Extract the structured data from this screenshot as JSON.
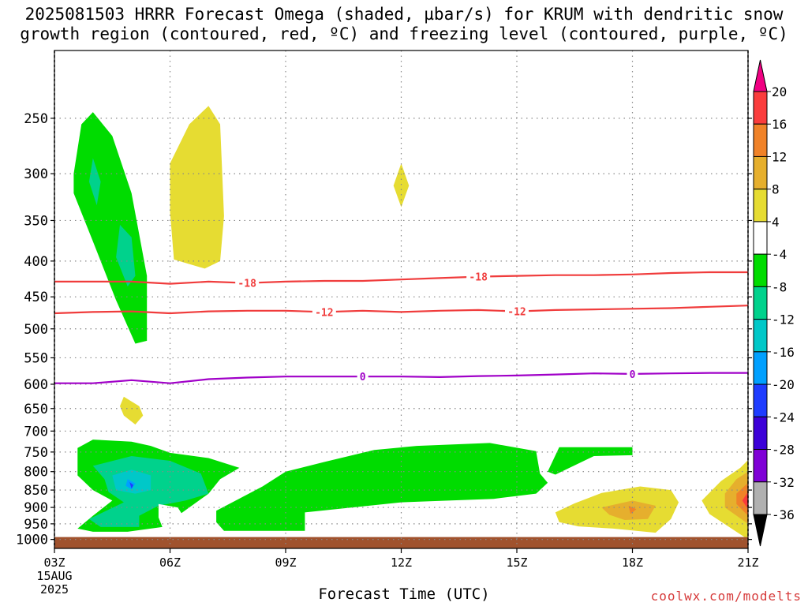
{
  "title": "2025081503 HRRR Forecast Omega (shaded, µbar/s) for KRUM with dendritic snow growth region (contoured, red, ºC) and freezing level (contoured, purple, ºC)",
  "credit": "coolwx.com/modelts",
  "colors": {
    "neg36": "#b0b0b0",
    "neg32": "#a000c8",
    "neg28": "#7f00d6",
    "neg24": "#3c00d8",
    "neg20": "#1e3cff",
    "neg16": "#00a0ff",
    "neg12": "#00c8c8",
    "neg8": "#00d28c",
    "neg4": "#00dc00",
    "zero": "#ffffff",
    "pos4": "#e6dc32",
    "pos8": "#e6af2d",
    "pos12": "#f08228",
    "pos16": "#fa3c3c",
    "pos20": "#f00082",
    "dgz_contour": "#f03c3c",
    "freezing_contour": "#a000c8",
    "ground": "#a0522d"
  },
  "chart_data": {
    "type": "contour",
    "xlabel": "Forecast Time (UTC)",
    "x_ticks": [
      "03Z",
      "06Z",
      "09Z",
      "12Z",
      "15Z",
      "18Z",
      "21Z"
    ],
    "x_start_date": [
      "15AUG",
      "2025"
    ],
    "x_range_hours": [
      3,
      21
    ],
    "y_ticks": [
      250,
      300,
      350,
      400,
      450,
      500,
      550,
      600,
      650,
      700,
      750,
      800,
      850,
      900,
      950,
      1000
    ],
    "y_range_hPa": [
      200,
      1030
    ],
    "y_log": true,
    "grid": true,
    "colorbar": {
      "labels": [
        20,
        16,
        12,
        8,
        4,
        -4,
        -8,
        -12,
        -16,
        -20,
        -24,
        -28,
        -32,
        -36
      ],
      "placement": "right"
    },
    "contours": [
      {
        "name": "-18",
        "color": "dgz_contour",
        "label_x": [
          8,
          14
        ],
        "points": [
          [
            3,
            428
          ],
          [
            5,
            428
          ],
          [
            6,
            431
          ],
          [
            7,
            428
          ],
          [
            8,
            430
          ],
          [
            9,
            428
          ],
          [
            10,
            427
          ],
          [
            11,
            427
          ],
          [
            12,
            425
          ],
          [
            13,
            423
          ],
          [
            14,
            421
          ],
          [
            15,
            420
          ],
          [
            16,
            419
          ],
          [
            17,
            419
          ],
          [
            18,
            418
          ],
          [
            19,
            416
          ],
          [
            20,
            415
          ],
          [
            21,
            415
          ]
        ]
      },
      {
        "name": "-12",
        "color": "dgz_contour",
        "label_x": [
          10,
          15
        ],
        "points": [
          [
            3,
            475
          ],
          [
            4,
            473
          ],
          [
            5,
            472
          ],
          [
            6,
            475
          ],
          [
            7,
            472
          ],
          [
            8,
            471
          ],
          [
            9,
            471
          ],
          [
            10,
            473
          ],
          [
            11,
            471
          ],
          [
            12,
            473
          ],
          [
            13,
            471
          ],
          [
            14,
            470
          ],
          [
            15,
            472
          ],
          [
            16,
            470
          ],
          [
            17,
            469
          ],
          [
            18,
            468
          ],
          [
            19,
            467
          ],
          [
            20,
            465
          ],
          [
            21,
            463
          ]
        ]
      },
      {
        "name": "0",
        "color": "freezing_contour",
        "label_x": [
          11,
          18
        ],
        "points": [
          [
            3,
            598
          ],
          [
            4,
            598
          ],
          [
            5,
            592
          ],
          [
            6,
            598
          ],
          [
            7,
            590
          ],
          [
            8,
            587
          ],
          [
            9,
            585
          ],
          [
            10,
            585
          ],
          [
            11,
            585
          ],
          [
            12,
            585
          ],
          [
            13,
            586
          ],
          [
            14,
            584
          ],
          [
            15,
            583
          ],
          [
            16,
            581
          ],
          [
            17,
            579
          ],
          [
            18,
            580
          ],
          [
            19,
            579
          ],
          [
            20,
            578
          ],
          [
            21,
            578
          ]
        ]
      }
    ],
    "shaded_regions": [
      {
        "level": "neg4",
        "points": [
          [
            4.0,
            245
          ],
          [
            4.5,
            265
          ],
          [
            5.0,
            320
          ],
          [
            5.4,
            420
          ],
          [
            5.4,
            520
          ],
          [
            5.1,
            525
          ],
          [
            4.6,
            455
          ],
          [
            4.0,
            375
          ],
          [
            3.5,
            320
          ],
          [
            3.5,
            300
          ],
          [
            3.7,
            255
          ]
        ]
      },
      {
        "level": "neg8",
        "points": [
          [
            4.0,
            285
          ],
          [
            4.2,
            308
          ],
          [
            4.1,
            333
          ],
          [
            3.9,
            308
          ]
        ]
      },
      {
        "level": "neg8",
        "points": [
          [
            4.7,
            355
          ],
          [
            5.0,
            370
          ],
          [
            5.1,
            420
          ],
          [
            4.9,
            435
          ],
          [
            4.6,
            395
          ]
        ]
      },
      {
        "level": "pos4",
        "points": [
          [
            6.5,
            255
          ],
          [
            7.0,
            240
          ],
          [
            7.3,
            255
          ],
          [
            7.4,
            345
          ],
          [
            7.3,
            400
          ],
          [
            6.9,
            410
          ],
          [
            6.1,
            398
          ],
          [
            6.0,
            340
          ],
          [
            6.0,
            290
          ]
        ]
      },
      {
        "level": "pos4",
        "points": [
          [
            12.0,
            290
          ],
          [
            12.2,
            312
          ],
          [
            12.0,
            335
          ],
          [
            11.8,
            312
          ]
        ]
      },
      {
        "level": "pos4",
        "points": [
          [
            4.8,
            625
          ],
          [
            5.2,
            645
          ],
          [
            5.3,
            665
          ],
          [
            5.1,
            685
          ],
          [
            4.8,
            665
          ],
          [
            4.7,
            645
          ]
        ]
      },
      {
        "level": "neg4",
        "points": [
          [
            3.6,
            740
          ],
          [
            4.0,
            720
          ],
          [
            5.0,
            725
          ],
          [
            5.5,
            735
          ],
          [
            6.0,
            752
          ],
          [
            7.0,
            765
          ],
          [
            7.8,
            790
          ],
          [
            7.3,
            820
          ],
          [
            7.0,
            860
          ],
          [
            6.2,
            925
          ],
          [
            5.8,
            960
          ],
          [
            4.9,
            975
          ],
          [
            4.0,
            975
          ],
          [
            3.6,
            965
          ],
          [
            4.0,
            925
          ],
          [
            4.5,
            880
          ],
          [
            4.0,
            850
          ],
          [
            3.6,
            810
          ],
          [
            3.6,
            770
          ]
        ]
      },
      {
        "level": "neg8",
        "points": [
          [
            4.0,
            785
          ],
          [
            5.0,
            760
          ],
          [
            6.0,
            772
          ],
          [
            6.8,
            805
          ],
          [
            7.0,
            860
          ],
          [
            6.4,
            880
          ],
          [
            5.7,
            895
          ],
          [
            5.2,
            925
          ],
          [
            5.2,
            960
          ],
          [
            4.2,
            960
          ],
          [
            3.9,
            935
          ],
          [
            4.8,
            885
          ],
          [
            4.4,
            855
          ],
          [
            4.3,
            820
          ]
        ]
      },
      {
        "level": "neg12",
        "points": [
          [
            4.5,
            810
          ],
          [
            5.0,
            795
          ],
          [
            5.5,
            810
          ],
          [
            5.5,
            850
          ],
          [
            5.1,
            860
          ],
          [
            4.6,
            850
          ]
        ]
      },
      {
        "level": "neg16",
        "points": [
          [
            4.9,
            820
          ],
          [
            5.1,
            832
          ],
          [
            5.0,
            848
          ],
          [
            4.85,
            838
          ]
        ]
      },
      {
        "level": "neg20",
        "points": [
          [
            4.95,
            828
          ],
          [
            5.05,
            836
          ],
          [
            5.0,
            846
          ]
        ]
      },
      {
        "level": "zero",
        "points": [
          [
            5.7,
            890
          ],
          [
            6.2,
            900
          ],
          [
            6.5,
            955
          ],
          [
            6.0,
            968
          ],
          [
            5.8,
            960
          ],
          [
            5.7,
            930
          ]
        ]
      },
      {
        "level": "neg4",
        "points": [
          [
            7.2,
            910
          ],
          [
            8.4,
            840
          ],
          [
            9.0,
            800
          ],
          [
            10.0,
            775
          ],
          [
            11.3,
            745
          ],
          [
            12.4,
            735
          ],
          [
            14.3,
            728
          ],
          [
            15.5,
            748
          ],
          [
            15.6,
            805
          ],
          [
            15.8,
            830
          ],
          [
            15.5,
            860
          ],
          [
            14.4,
            875
          ],
          [
            12.0,
            885
          ],
          [
            9.5,
            915
          ],
          [
            9.5,
            972
          ],
          [
            7.4,
            972
          ],
          [
            7.2,
            945
          ]
        ]
      },
      {
        "level": "neg4",
        "points": [
          [
            16.1,
            738
          ],
          [
            18.0,
            738
          ],
          [
            18.0,
            758
          ],
          [
            17.0,
            760
          ],
          [
            16.0,
            808
          ],
          [
            15.8,
            800
          ]
        ]
      },
      {
        "level": "pos4",
        "points": [
          [
            16.0,
            915
          ],
          [
            16.5,
            888
          ],
          [
            17.2,
            858
          ],
          [
            18.2,
            840
          ],
          [
            19.0,
            850
          ],
          [
            19.2,
            885
          ],
          [
            19.0,
            935
          ],
          [
            18.6,
            978
          ],
          [
            17.5,
            965
          ],
          [
            16.6,
            958
          ],
          [
            16.1,
            945
          ]
        ]
      },
      {
        "level": "pos8",
        "points": [
          [
            17.2,
            900
          ],
          [
            18.0,
            880
          ],
          [
            18.6,
            895
          ],
          [
            18.4,
            935
          ],
          [
            17.8,
            938
          ],
          [
            17.4,
            922
          ]
        ]
      },
      {
        "level": "pos12",
        "points": [
          [
            17.9,
            895
          ],
          [
            18.1,
            905
          ],
          [
            17.95,
            920
          ]
        ]
      },
      {
        "level": "pos4",
        "points": [
          [
            21.0,
            770
          ],
          [
            21.0,
            1000
          ],
          [
            20.0,
            920
          ],
          [
            19.8,
            880
          ],
          [
            20.3,
            825
          ],
          [
            20.8,
            790
          ]
        ]
      },
      {
        "level": "pos8",
        "points": [
          [
            21.0,
            800
          ],
          [
            21.0,
            950
          ],
          [
            20.4,
            900
          ],
          [
            20.4,
            860
          ],
          [
            20.7,
            820
          ]
        ]
      },
      {
        "level": "pos12",
        "points": [
          [
            21.0,
            830
          ],
          [
            21.0,
            925
          ],
          [
            20.7,
            890
          ],
          [
            20.7,
            860
          ]
        ]
      },
      {
        "level": "pos16",
        "points": [
          [
            21.0,
            855
          ],
          [
            21.0,
            905
          ],
          [
            20.85,
            880
          ]
        ]
      }
    ],
    "ground": {
      "from_hPa": 1000,
      "to_hPa": 1030
    }
  }
}
